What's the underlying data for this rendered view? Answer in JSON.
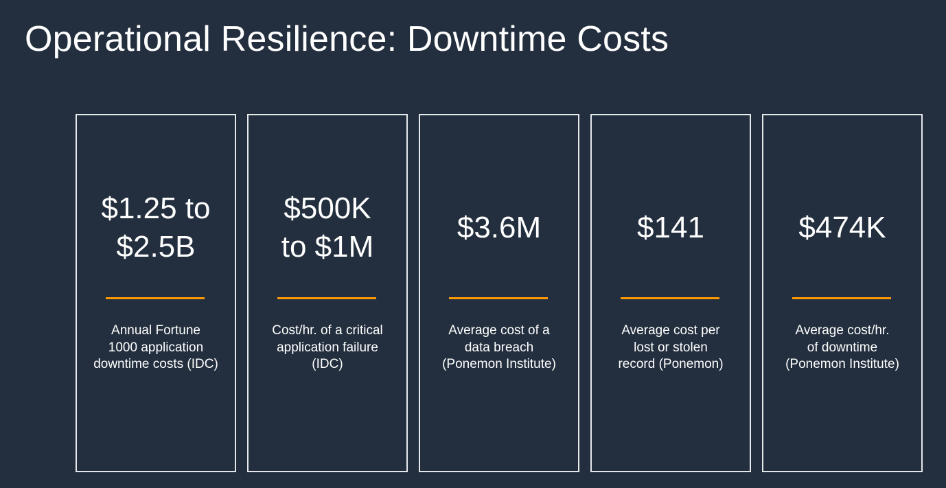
{
  "title": "Operational Resilience: Downtime Costs",
  "colors": {
    "background": "#232f3e",
    "card_border": "#e6e9ec",
    "accent": "#ff9900",
    "text": "#ffffff"
  },
  "stats": [
    {
      "value": "$1.25 to\n$2.5B",
      "description": "Annual Fortune\n1000 application\ndowntime costs (IDC)"
    },
    {
      "value": "$500K\nto $1M",
      "description": "Cost/hr. of a critical\napplication failure\n(IDC)"
    },
    {
      "value": "$3.6M",
      "description": "Average cost of a\ndata breach\n(Ponemon Institute)"
    },
    {
      "value": "$141",
      "description": "Average cost per\nlost or stolen\nrecord (Ponemon)"
    },
    {
      "value": "$474K",
      "description": "Average cost/hr.\nof downtime\n(Ponemon Institute)"
    }
  ]
}
